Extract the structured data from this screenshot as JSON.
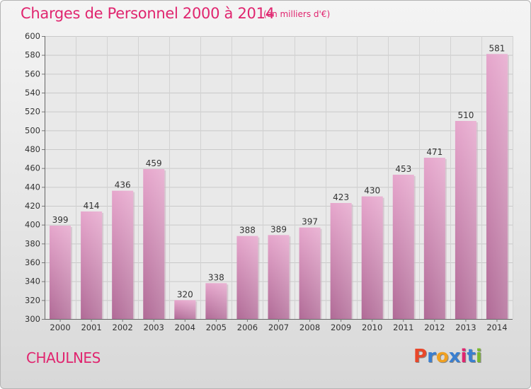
{
  "title": "Charges de Personnel 2000 à 2014",
  "subtitle": "(en milliers d'€)",
  "location": "CHAULNES",
  "logo": {
    "text": "Proxiti",
    "letter_colors": [
      "#e8472a",
      "#3a7fd0",
      "#f0a020",
      "#3a7fd0",
      "#e0256f",
      "#3a7fd0",
      "#7ab830"
    ]
  },
  "colors": {
    "accent": "#e0256f",
    "bar_top": "#e6a6cc",
    "bar_bottom": "#b06a96",
    "grid": "#c8c8c8"
  },
  "chart_data": {
    "type": "bar",
    "title": "Charges de Personnel 2000 à 2014",
    "subtitle": "(en milliers d'€)",
    "categories": [
      "2000",
      "2001",
      "2002",
      "2003",
      "2004",
      "2005",
      "2006",
      "2007",
      "2008",
      "2009",
      "2010",
      "2011",
      "2012",
      "2013",
      "2014"
    ],
    "values": [
      399,
      414,
      436,
      459,
      320,
      338,
      388,
      389,
      397,
      423,
      430,
      453,
      471,
      510,
      581
    ],
    "ylim": [
      300,
      600
    ],
    "yticks": [
      300,
      320,
      340,
      360,
      380,
      400,
      420,
      440,
      460,
      480,
      500,
      520,
      540,
      560,
      580,
      600
    ],
    "grid": true,
    "data_labels": true
  }
}
